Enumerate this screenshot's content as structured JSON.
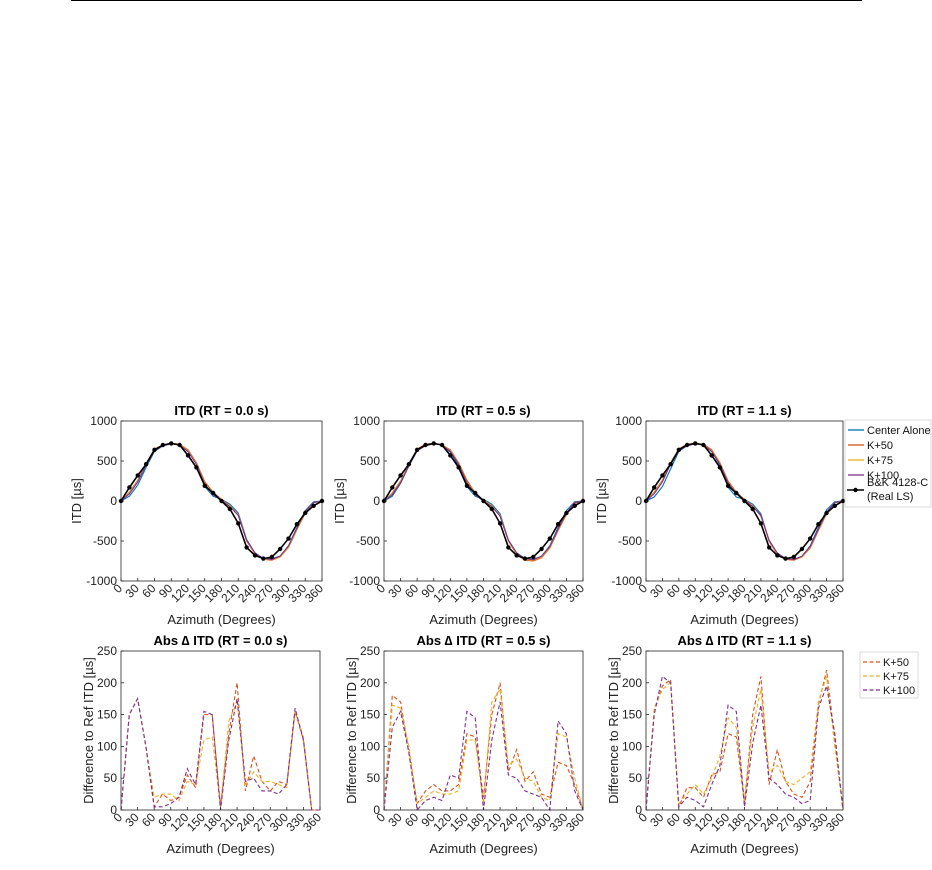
{
  "colors": {
    "center_alone": "#0072BD",
    "k50": "#D95319",
    "k75": "#EDB120",
    "k100": "#7E2F8E",
    "reference": "#000000"
  },
  "legend_top": {
    "entries": [
      "Center Alone",
      "K+50",
      "K+75",
      "K+100",
      "B&K 4128-C",
      "(Real LS)"
    ]
  },
  "legend_bottom": {
    "entries": [
      "K+50",
      "K+75",
      "K+100"
    ]
  },
  "chart_data": [
    {
      "type": "line",
      "title": "ITD (RT = 0.0 s)",
      "xlabel": "Azimuth (Degrees)",
      "ylabel": "ITD [µs]",
      "xlim": [
        0,
        360
      ],
      "ylim": [
        -1000,
        1000
      ],
      "xticks": [
        "0",
        "30",
        "60",
        "90",
        "120",
        "150",
        "180",
        "210",
        "240",
        "270",
        "300",
        "330",
        "360"
      ],
      "yticks": [
        "-1000",
        "-500",
        "0",
        "500",
        "1000"
      ],
      "x": [
        0,
        15,
        30,
        45,
        60,
        75,
        90,
        105,
        120,
        135,
        150,
        165,
        180,
        195,
        210,
        225,
        240,
        255,
        270,
        285,
        300,
        315,
        330,
        345,
        360
      ],
      "series": [
        {
          "name": "Center Alone",
          "values": [
            0,
            60,
            200,
            420,
            620,
            690,
            720,
            700,
            620,
            470,
            180,
            60,
            20,
            -40,
            -150,
            -480,
            -650,
            -720,
            -720,
            -690,
            -560,
            -330,
            -120,
            -10,
            0
          ]
        },
        {
          "name": "K+50",
          "values": [
            0,
            110,
            260,
            470,
            650,
            700,
            720,
            710,
            640,
            480,
            240,
            110,
            20,
            -60,
            -180,
            -500,
            -660,
            -730,
            -740,
            -700,
            -580,
            -360,
            -150,
            -20,
            0
          ]
        },
        {
          "name": "K+75",
          "values": [
            0,
            100,
            250,
            460,
            640,
            700,
            720,
            710,
            630,
            470,
            220,
            90,
            10,
            -60,
            -170,
            -490,
            -660,
            -730,
            -730,
            -700,
            -570,
            -350,
            -140,
            -20,
            0
          ]
        },
        {
          "name": "K+100",
          "values": [
            0,
            90,
            240,
            450,
            630,
            690,
            715,
            700,
            620,
            460,
            210,
            80,
            10,
            -70,
            -180,
            -490,
            -650,
            -720,
            -730,
            -690,
            -560,
            -340,
            -130,
            -20,
            0
          ]
        },
        {
          "name": "B&K 4128-C (Real LS)",
          "values": [
            0,
            170,
            320,
            460,
            640,
            700,
            720,
            700,
            570,
            420,
            190,
            100,
            0,
            -100,
            -280,
            -580,
            -680,
            -720,
            -700,
            -600,
            -470,
            -290,
            -150,
            -60,
            0
          ]
        }
      ]
    },
    {
      "type": "line",
      "title": "ITD (RT = 0.5 s)",
      "xlabel": "Azimuth (Degrees)",
      "ylabel": "ITD [µs]",
      "xlim": [
        0,
        360
      ],
      "ylim": [
        -1000,
        1000
      ],
      "xticks": [
        "0",
        "30",
        "60",
        "90",
        "120",
        "150",
        "180",
        "210",
        "240",
        "270",
        "300",
        "330",
        "360"
      ],
      "yticks": [
        "-1000",
        "-500",
        "0",
        "500",
        "1000"
      ],
      "x": [
        0,
        15,
        30,
        45,
        60,
        75,
        90,
        105,
        120,
        135,
        150,
        165,
        180,
        195,
        210,
        225,
        240,
        255,
        270,
        285,
        300,
        315,
        330,
        345,
        360
      ],
      "series": [
        {
          "name": "Center Alone",
          "values": [
            0,
            60,
            220,
            440,
            630,
            700,
            720,
            700,
            610,
            440,
            180,
            60,
            20,
            -40,
            -160,
            -490,
            -650,
            -720,
            -730,
            -690,
            -560,
            -330,
            -120,
            -10,
            0
          ]
        },
        {
          "name": "K+50",
          "values": [
            0,
            100,
            250,
            460,
            650,
            710,
            720,
            700,
            640,
            480,
            260,
            100,
            10,
            -60,
            -190,
            -500,
            -670,
            -740,
            -750,
            -710,
            -590,
            -370,
            -170,
            -30,
            0
          ]
        },
        {
          "name": "K+75",
          "values": [
            0,
            90,
            240,
            450,
            640,
            700,
            720,
            700,
            630,
            470,
            240,
            90,
            10,
            -60,
            -180,
            -490,
            -660,
            -730,
            -740,
            -700,
            -580,
            -360,
            -160,
            -20,
            0
          ]
        },
        {
          "name": "K+100",
          "values": [
            0,
            80,
            230,
            440,
            630,
            690,
            715,
            700,
            620,
            460,
            230,
            80,
            0,
            -70,
            -190,
            -490,
            -650,
            -720,
            -735,
            -690,
            -570,
            -350,
            -150,
            -20,
            0
          ]
        },
        {
          "name": "B&K 4128-C (Real LS)",
          "values": [
            0,
            170,
            320,
            460,
            640,
            700,
            720,
            700,
            570,
            420,
            190,
            100,
            0,
            -100,
            -280,
            -580,
            -680,
            -720,
            -700,
            -600,
            -470,
            -290,
            -150,
            -60,
            0
          ]
        }
      ]
    },
    {
      "type": "line",
      "title": "ITD (RT = 1.1 s)",
      "xlabel": "Azimuth (Degrees)",
      "ylabel": "ITD [µs]",
      "xlim": [
        0,
        360
      ],
      "ylim": [
        -1000,
        1000
      ],
      "xticks": [
        "0",
        "30",
        "60",
        "90",
        "120",
        "150",
        "180",
        "210",
        "240",
        "270",
        "300",
        "330",
        "360"
      ],
      "yticks": [
        "-1000",
        "-500",
        "0",
        "500",
        "1000"
      ],
      "x": [
        0,
        15,
        30,
        45,
        60,
        75,
        90,
        105,
        120,
        135,
        150,
        165,
        180,
        195,
        210,
        225,
        240,
        255,
        270,
        285,
        300,
        315,
        330,
        345,
        360
      ],
      "series": [
        {
          "name": "Center Alone",
          "values": [
            0,
            50,
            180,
            400,
            620,
            690,
            720,
            700,
            620,
            450,
            170,
            50,
            20,
            -40,
            -160,
            -500,
            -660,
            -720,
            -730,
            -690,
            -560,
            -330,
            -110,
            -10,
            0
          ]
        },
        {
          "name": "K+50",
          "values": [
            0,
            110,
            260,
            480,
            650,
            710,
            720,
            710,
            640,
            480,
            250,
            110,
            20,
            -60,
            -190,
            -500,
            -670,
            -730,
            -740,
            -700,
            -590,
            -370,
            -160,
            -20,
            0
          ]
        },
        {
          "name": "K+75",
          "values": [
            0,
            100,
            250,
            470,
            640,
            700,
            720,
            700,
            630,
            470,
            240,
            100,
            10,
            -60,
            -180,
            -490,
            -660,
            -720,
            -730,
            -700,
            -580,
            -360,
            -150,
            -20,
            0
          ]
        },
        {
          "name": "K+100",
          "values": [
            0,
            90,
            240,
            460,
            630,
            690,
            715,
            700,
            620,
            460,
            230,
            90,
            10,
            -70,
            -180,
            -490,
            -650,
            -720,
            -730,
            -690,
            -570,
            -350,
            -140,
            -20,
            0
          ]
        },
        {
          "name": "B&K 4128-C (Real LS)",
          "values": [
            0,
            170,
            320,
            460,
            640,
            700,
            720,
            700,
            570,
            420,
            190,
            100,
            0,
            -100,
            -280,
            -580,
            -680,
            -720,
            -700,
            -600,
            -470,
            -290,
            -150,
            -60,
            0
          ]
        }
      ]
    },
    {
      "type": "line",
      "title": "Abs ∆ ITD (RT = 0.0 s)",
      "xlabel": "Azimuth (Degrees)",
      "ylabel": "Difference to Ref ITD [µs]",
      "xlim": [
        0,
        360
      ],
      "ylim": [
        0,
        250
      ],
      "xticks": [
        "0",
        "30",
        "60",
        "90",
        "120",
        "150",
        "180",
        "210",
        "240",
        "270",
        "300",
        "330",
        "360"
      ],
      "yticks": [
        "0",
        "50",
        "100",
        "150",
        "200",
        "250"
      ],
      "x": [
        0,
        15,
        30,
        45,
        60,
        75,
        90,
        105,
        120,
        135,
        150,
        165,
        180,
        195,
        210,
        225,
        240,
        255,
        270,
        285,
        300,
        315,
        330,
        345,
        360
      ],
      "series": [
        {
          "name": "K+50",
          "values": [
            0,
            150,
            175,
            100,
            5,
            25,
            15,
            20,
            55,
            35,
            150,
            150,
            5,
            120,
            200,
            30,
            85,
            45,
            30,
            45,
            40,
            155,
            110,
            0,
            0
          ]
        },
        {
          "name": "K+75",
          "values": [
            0,
            150,
            175,
            100,
            20,
            25,
            25,
            15,
            45,
            40,
            110,
            115,
            5,
            140,
            170,
            40,
            60,
            45,
            45,
            40,
            35,
            155,
            115,
            0,
            0
          ]
        },
        {
          "name": "K+100",
          "values": [
            0,
            150,
            175,
            100,
            5,
            5,
            10,
            20,
            65,
            40,
            155,
            150,
            0,
            110,
            175,
            45,
            50,
            30,
            30,
            25,
            40,
            160,
            110,
            0,
            0
          ]
        }
      ]
    },
    {
      "type": "line",
      "title": "Abs ∆ ITD (RT = 0.5 s)",
      "xlabel": "Azimuth (Degrees)",
      "ylabel": "Difference to Ref ITD [µs]",
      "xlim": [
        0,
        360
      ],
      "ylim": [
        0,
        250
      ],
      "xticks": [
        "0",
        "30",
        "60",
        "90",
        "120",
        "150",
        "180",
        "210",
        "240",
        "270",
        "300",
        "330",
        "360"
      ],
      "yticks": [
        "0",
        "50",
        "100",
        "150",
        "200",
        "250"
      ],
      "x": [
        0,
        15,
        30,
        45,
        60,
        75,
        90,
        105,
        120,
        135,
        150,
        165,
        180,
        195,
        210,
        225,
        240,
        255,
        270,
        285,
        300,
        315,
        330,
        345,
        360
      ],
      "series": [
        {
          "name": "K+50",
          "values": [
            0,
            180,
            170,
            90,
            10,
            30,
            40,
            30,
            30,
            40,
            120,
            115,
            20,
            150,
            200,
            60,
            95,
            45,
            60,
            25,
            20,
            75,
            70,
            40,
            0
          ]
        },
        {
          "name": "K+75",
          "values": [
            0,
            165,
            160,
            100,
            10,
            20,
            30,
            25,
            25,
            30,
            110,
            110,
            10,
            170,
            190,
            70,
            80,
            50,
            45,
            20,
            15,
            120,
            115,
            50,
            0
          ]
        },
        {
          "name": "K+100",
          "values": [
            0,
            130,
            155,
            90,
            0,
            15,
            20,
            15,
            55,
            50,
            155,
            145,
            0,
            110,
            170,
            55,
            50,
            30,
            25,
            20,
            0,
            140,
            120,
            30,
            0
          ]
        }
      ]
    },
    {
      "type": "line",
      "title": "Abs ∆ ITD (RT = 1.1 s)",
      "xlabel": "Azimuth (Degrees)",
      "ylabel": "Difference to Ref ITD [µs]",
      "xlim": [
        0,
        360
      ],
      "ylim": [
        0,
        250
      ],
      "xticks": [
        "0",
        "30",
        "60",
        "90",
        "120",
        "150",
        "180",
        "210",
        "240",
        "270",
        "300",
        "330",
        "360"
      ],
      "yticks": [
        "0",
        "50",
        "100",
        "150",
        "200",
        "250"
      ],
      "x": [
        0,
        15,
        30,
        45,
        60,
        75,
        90,
        105,
        120,
        135,
        150,
        165,
        180,
        195,
        210,
        225,
        240,
        255,
        270,
        285,
        300,
        315,
        330,
        345,
        360
      ],
      "series": [
        {
          "name": "K+50",
          "values": [
            0,
            155,
            195,
            205,
            5,
            35,
            35,
            20,
            55,
            60,
            120,
            115,
            10,
            150,
            210,
            40,
            95,
            45,
            25,
            20,
            45,
            165,
            220,
            110,
            0
          ]
        },
        {
          "name": "K+75",
          "values": [
            0,
            160,
            190,
            200,
            10,
            25,
            40,
            25,
            50,
            85,
            145,
            130,
            15,
            130,
            190,
            60,
            70,
            45,
            40,
            50,
            60,
            170,
            210,
            100,
            0
          ]
        },
        {
          "name": "K+100",
          "values": [
            0,
            150,
            210,
            200,
            5,
            20,
            15,
            5,
            40,
            70,
            165,
            155,
            5,
            105,
            165,
            50,
            40,
            25,
            20,
            10,
            15,
            160,
            195,
            120,
            0
          ]
        }
      ]
    }
  ]
}
